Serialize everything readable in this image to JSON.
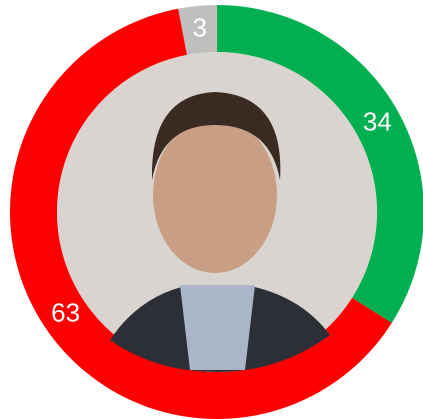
{
  "chart_data": {
    "type": "pie",
    "donut": true,
    "values": [
      34,
      63,
      3
    ],
    "colors": [
      "#00b050",
      "#ff0000",
      "#bfbfbf"
    ]
  }
}
